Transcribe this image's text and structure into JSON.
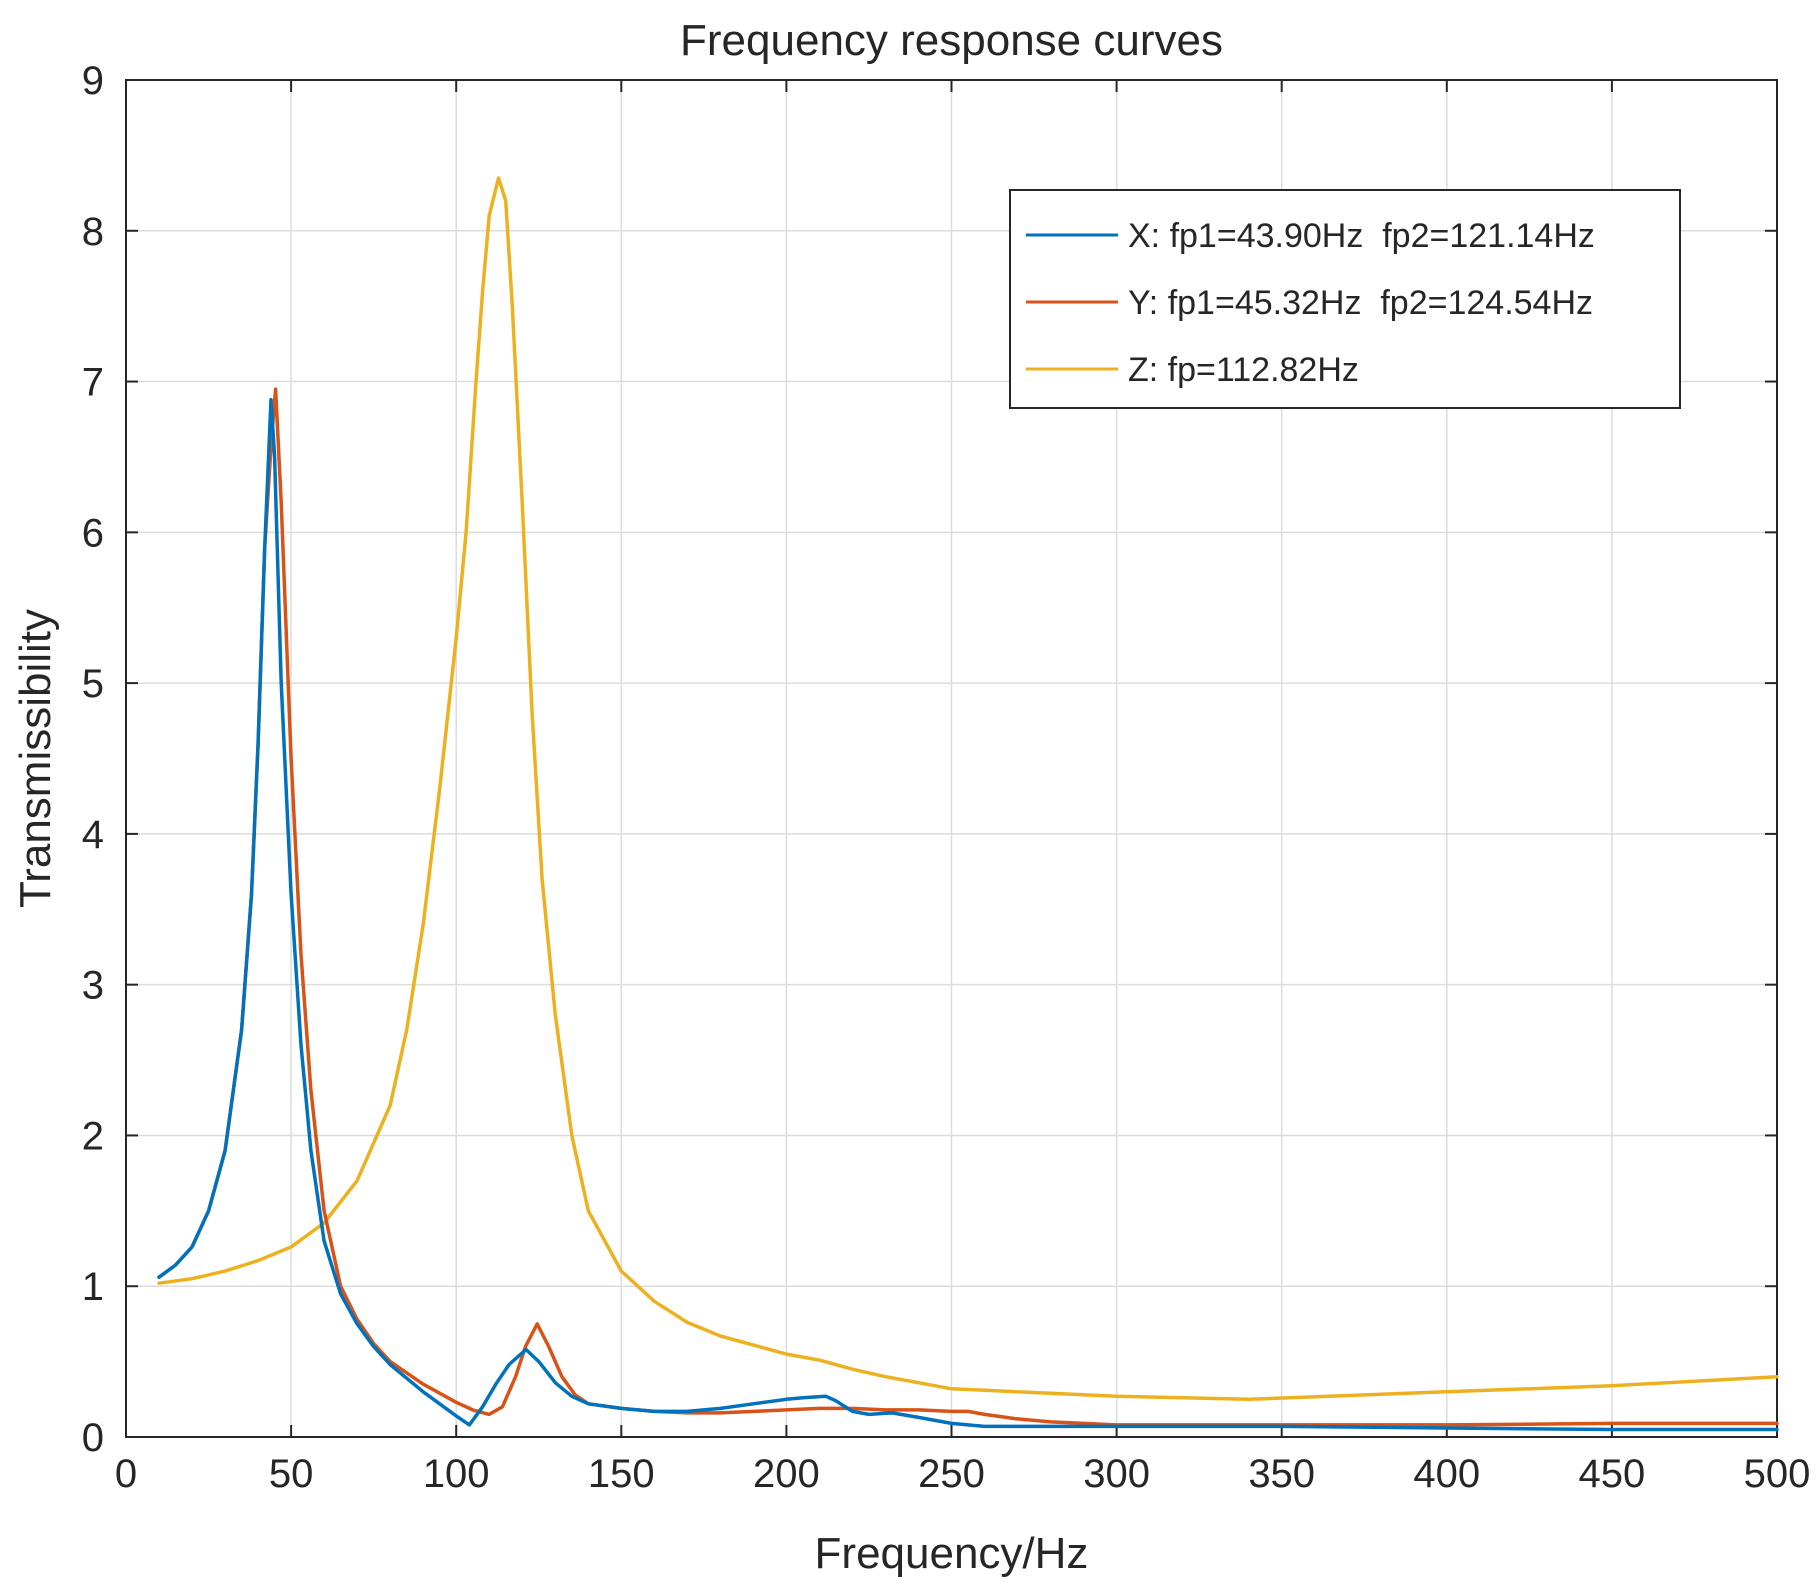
{
  "chart_data": {
    "type": "line",
    "title": "Frequency response curves",
    "xlabel": "Frequency/Hz",
    "ylabel": "Transmissibility",
    "xlim": [
      0,
      500
    ],
    "ylim": [
      0,
      9
    ],
    "xticks": [
      0,
      50,
      100,
      150,
      200,
      250,
      300,
      350,
      400,
      450,
      500
    ],
    "yticks": [
      0,
      1,
      2,
      3,
      4,
      5,
      6,
      7,
      8,
      9
    ],
    "grid": true,
    "legend_position": "top-right",
    "series": [
      {
        "name": "X: fp1=43.90Hz  fp2=121.14Hz",
        "color": "#0072BD",
        "x": [
          10,
          15,
          20,
          25,
          30,
          35,
          38,
          40,
          42,
          43.9,
          45,
          47,
          50,
          53,
          56,
          60,
          65,
          70,
          75,
          80,
          90,
          100,
          104,
          108,
          112,
          116,
          121.14,
          125,
          130,
          135,
          140,
          150,
          160,
          170,
          180,
          190,
          200,
          205,
          212,
          215,
          220,
          225,
          232,
          240,
          250,
          260,
          270,
          300,
          350,
          400,
          450,
          500
        ],
        "y": [
          1.06,
          1.14,
          1.26,
          1.5,
          1.9,
          2.7,
          3.6,
          4.6,
          5.9,
          6.88,
          6.5,
          5.0,
          3.6,
          2.6,
          1.9,
          1.3,
          0.95,
          0.75,
          0.6,
          0.48,
          0.3,
          0.14,
          0.08,
          0.2,
          0.35,
          0.48,
          0.58,
          0.5,
          0.36,
          0.27,
          0.22,
          0.19,
          0.17,
          0.17,
          0.19,
          0.22,
          0.25,
          0.26,
          0.27,
          0.24,
          0.17,
          0.15,
          0.16,
          0.13,
          0.09,
          0.07,
          0.07,
          0.07,
          0.07,
          0.06,
          0.05,
          0.05
        ]
      },
      {
        "name": "Y: fp1=45.32Hz  fp2=124.54Hz",
        "color": "#D95319",
        "x": [
          10,
          15,
          20,
          25,
          30,
          35,
          38,
          40,
          42,
          44,
          45.32,
          47,
          50,
          53,
          56,
          60,
          65,
          70,
          75,
          80,
          90,
          100,
          105,
          110,
          114,
          118,
          121,
          124.54,
          128,
          132,
          136,
          140,
          150,
          160,
          170,
          180,
          190,
          200,
          210,
          220,
          230,
          240,
          250,
          255,
          260,
          270,
          280,
          300,
          350,
          400,
          450,
          500
        ],
        "y": [
          1.06,
          1.14,
          1.26,
          1.5,
          1.9,
          2.7,
          3.6,
          4.6,
          5.9,
          6.6,
          6.95,
          6.2,
          4.5,
          3.2,
          2.3,
          1.5,
          1.0,
          0.78,
          0.62,
          0.5,
          0.35,
          0.23,
          0.18,
          0.15,
          0.2,
          0.4,
          0.6,
          0.75,
          0.6,
          0.4,
          0.28,
          0.22,
          0.19,
          0.17,
          0.16,
          0.16,
          0.17,
          0.18,
          0.19,
          0.19,
          0.18,
          0.18,
          0.17,
          0.17,
          0.15,
          0.12,
          0.1,
          0.08,
          0.08,
          0.08,
          0.09,
          0.09
        ]
      },
      {
        "name": "Z: fp=112.82Hz",
        "color": "#EDB120",
        "x": [
          10,
          20,
          30,
          40,
          50,
          60,
          70,
          80,
          85,
          90,
          95,
          100,
          103,
          106,
          108,
          110,
          112.82,
          115,
          117,
          120,
          123,
          126,
          130,
          135,
          140,
          150,
          160,
          170,
          180,
          200,
          210,
          220,
          230,
          240,
          250,
          260,
          280,
          300,
          340,
          400,
          450,
          500
        ],
        "y": [
          1.02,
          1.05,
          1.1,
          1.17,
          1.26,
          1.42,
          1.7,
          2.2,
          2.7,
          3.4,
          4.3,
          5.3,
          6.0,
          7.0,
          7.6,
          8.1,
          8.35,
          8.2,
          7.5,
          6.2,
          4.8,
          3.7,
          2.8,
          2.0,
          1.5,
          1.1,
          0.9,
          0.76,
          0.67,
          0.55,
          0.51,
          0.45,
          0.4,
          0.36,
          0.32,
          0.31,
          0.29,
          0.27,
          0.25,
          0.3,
          0.34,
          0.4
        ]
      }
    ]
  }
}
